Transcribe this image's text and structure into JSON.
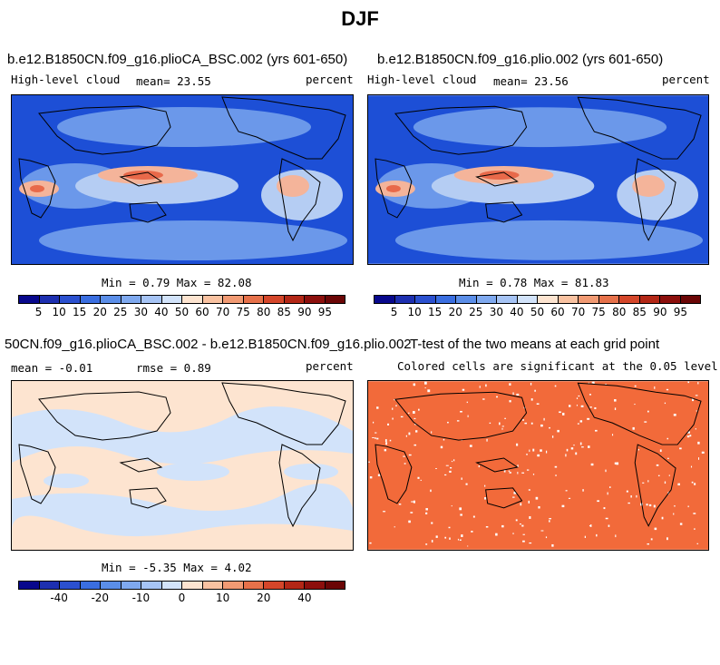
{
  "main_title": "DJF",
  "panels": [
    {
      "title": "b.e12.B1850CN.f09_g16.plioCA_BSC.002 (yrs 601-650)",
      "variable": "High-level cloud",
      "mean_text": "mean=  23.55",
      "units": "percent",
      "minmax_text": "Min =   0.79 Max =  82.08"
    },
    {
      "title": "b.e12.B1850CN.f09_g16.plio.002 (yrs 601-650)",
      "variable": "High-level cloud",
      "mean_text": "mean=  23.56",
      "units": "percent",
      "minmax_text": "Min =   0.78 Max =  81.83"
    },
    {
      "title": "50CN.f09_g16.plioCA_BSC.002 - b.e12.B1850CN.f09_g16.plio.002",
      "mean_text": "mean =  -0.01",
      "rmse_text": "rmse =   0.89",
      "units": "percent",
      "minmax_text": "Min =  -5.35 Max =   4.02"
    },
    {
      "title": "T-test of the two means at each grid point",
      "subtitle": "Colored cells are significant at the 0.05 level"
    }
  ],
  "colorbar_levels": [
    "5",
    "10",
    "15",
    "20",
    "25",
    "30",
    "40",
    "50",
    "60",
    "70",
    "75",
    "80",
    "85",
    "90",
    "95"
  ],
  "diff_colorbar_levels": [
    "-40",
    "-20",
    "-10",
    "0",
    "10",
    "20",
    "40"
  ],
  "colors": {
    "cbar": [
      "#08088c",
      "#1d2fb0",
      "#2b50cf",
      "#3a6ee0",
      "#5b8ee8",
      "#7fa9ef",
      "#a6c4f5",
      "#d2e3fa",
      "#fde4d0",
      "#f9c2a1",
      "#f19a73",
      "#e6714a",
      "#d4462a",
      "#b32716",
      "#8c0f0c",
      "#6b0606"
    ],
    "map_low": "#1d4fd6",
    "map_mid": "#6b98ea",
    "map_light": "#b5cdf3",
    "map_warm": "#f4b49a",
    "map_hot": "#e8694a",
    "diff_pos": "#fde4d0",
    "diff_neg": "#d2e3fa",
    "ttest": "#f26a3a"
  }
}
